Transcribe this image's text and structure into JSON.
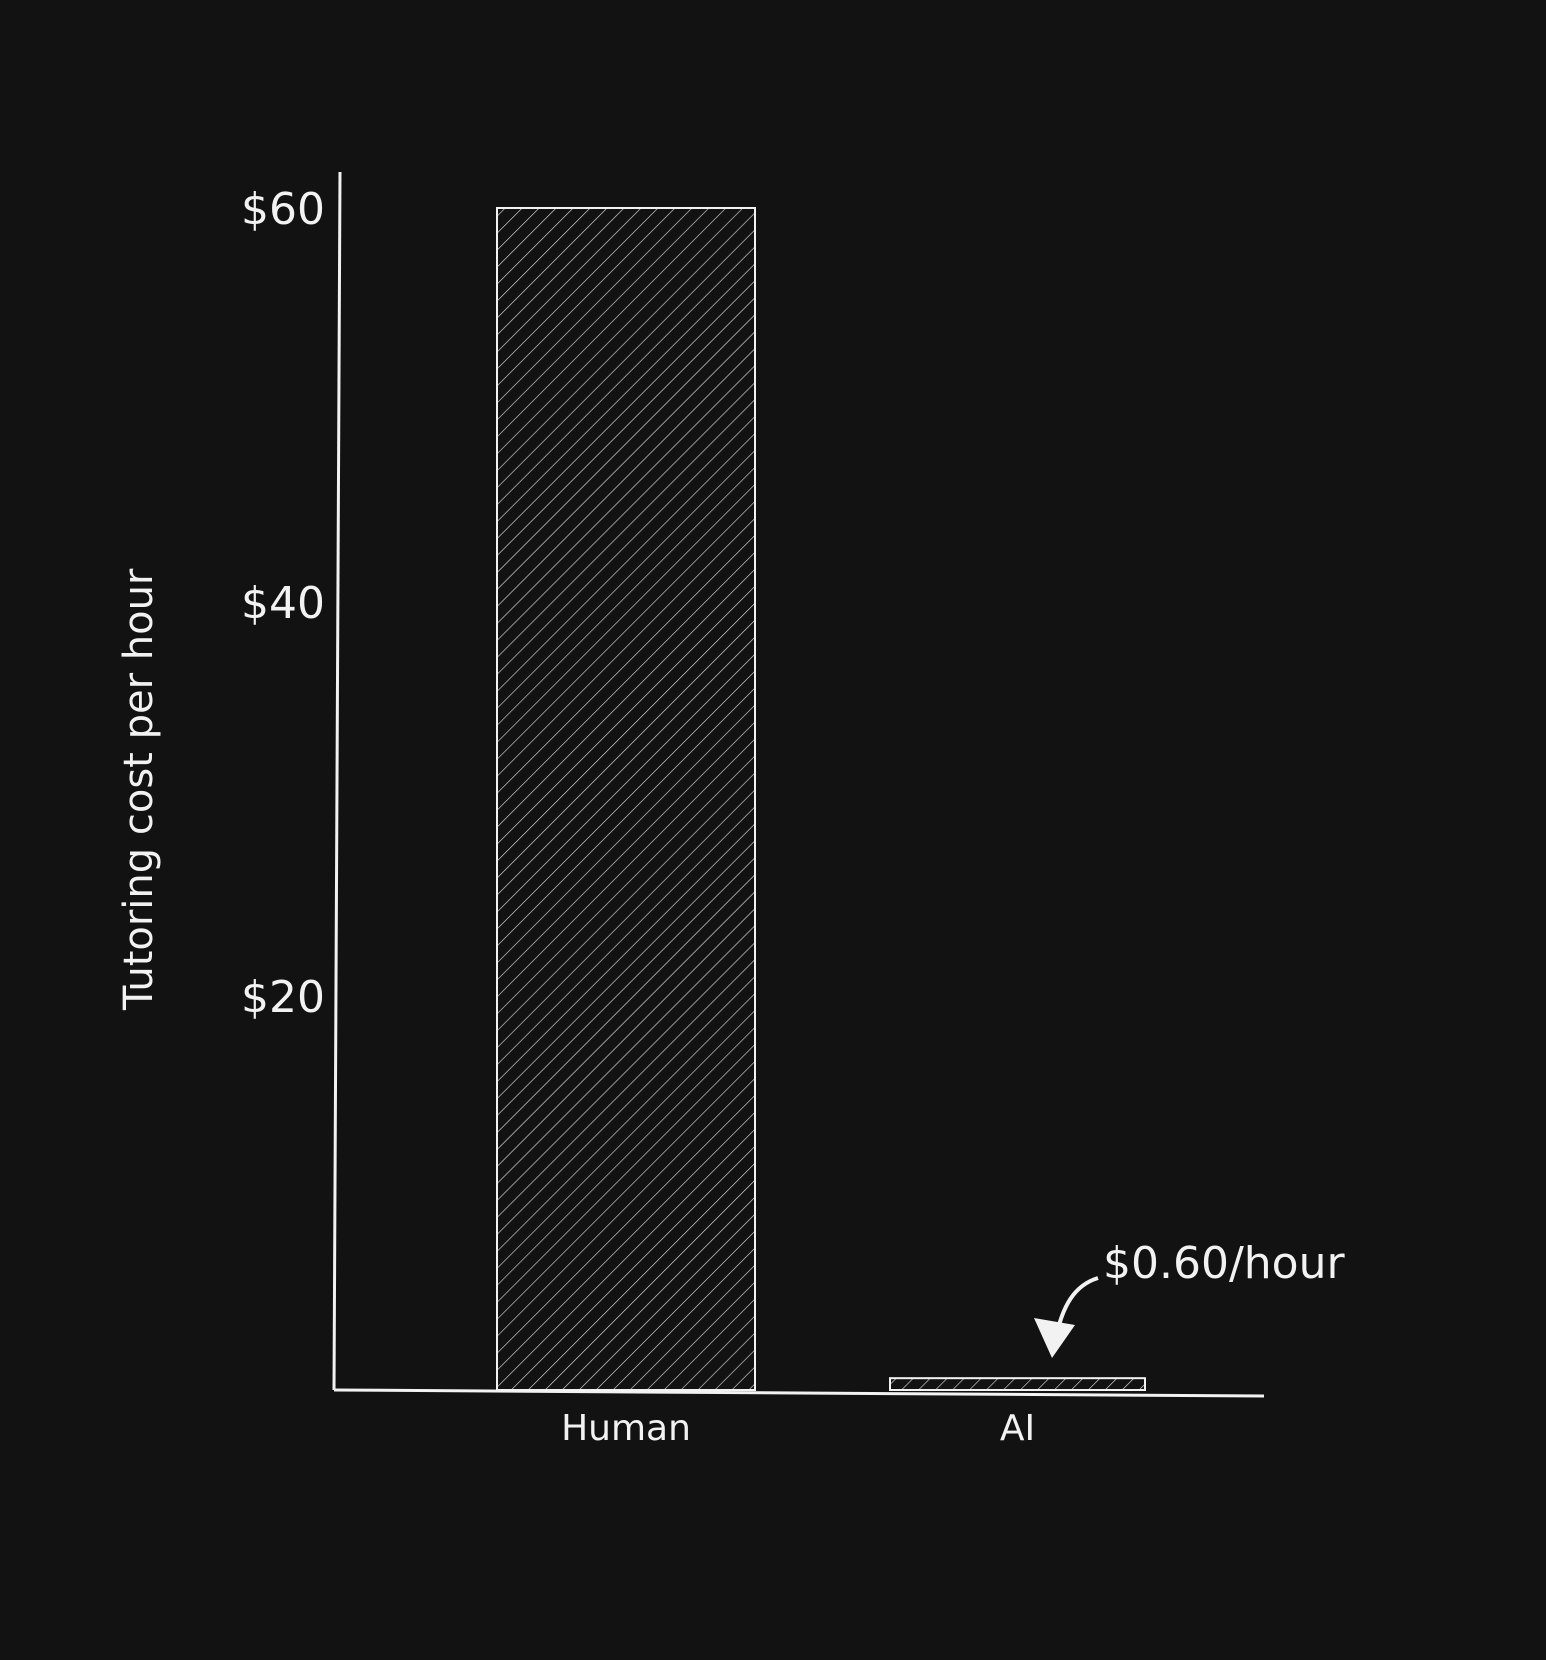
{
  "chart_data": {
    "type": "bar",
    "title": "",
    "xlabel": "",
    "ylabel": "Tutoring cost per hour",
    "categories": [
      "Human",
      "AI"
    ],
    "values": [
      60,
      0.6
    ],
    "ylim": [
      0,
      64
    ],
    "yticks": [
      20,
      40,
      60
    ],
    "ytick_labels": [
      "$20",
      "$40",
      "$60"
    ],
    "grid": false,
    "bar_fill": "diagonal-hatch",
    "annotations": [
      {
        "text": "$0.60/hour",
        "target": "AI",
        "arrow": true
      }
    ],
    "colors": {
      "background": "#121212",
      "foreground": "#f2f2f2"
    }
  }
}
